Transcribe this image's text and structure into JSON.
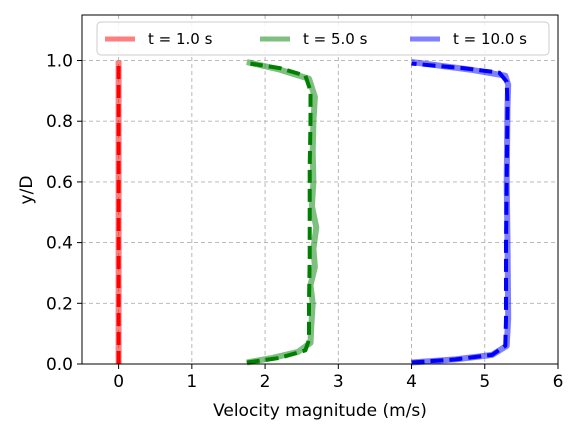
{
  "chart_data": {
    "type": "line",
    "title": "",
    "xlabel": "Velocity magnitude (m/s)",
    "ylabel": "y/D",
    "xlim": [
      -0.5,
      6
    ],
    "ylim": [
      0,
      1.15
    ],
    "x_ticks": [
      "0",
      "1",
      "2",
      "3",
      "4",
      "5",
      "6"
    ],
    "x_tick_values": [
      0,
      1,
      2,
      3,
      4,
      5,
      6
    ],
    "y_ticks": [
      "0.0",
      "0.2",
      "0.4",
      "0.6",
      "0.8",
      "1.0"
    ],
    "y_tick_values": [
      0,
      0.2,
      0.4,
      0.6,
      0.8,
      1.0
    ],
    "grid": true,
    "legend_placement": "top, 3 columns",
    "series": [
      {
        "name": "t = 1.0 s",
        "color": "#ff0000",
        "solid": [
          [
            0,
            0.0
          ],
          [
            0,
            1.0
          ]
        ],
        "dashed": [
          [
            0,
            0.0
          ],
          [
            0,
            1.0
          ]
        ]
      },
      {
        "name": "t = 5.0 s",
        "color": "#008000",
        "solid": [
          [
            1.75,
            0.005
          ],
          [
            2.1,
            0.02
          ],
          [
            2.45,
            0.04
          ],
          [
            2.62,
            0.07
          ],
          [
            2.63,
            0.12
          ],
          [
            2.65,
            0.2
          ],
          [
            2.62,
            0.26
          ],
          [
            2.68,
            0.32
          ],
          [
            2.66,
            0.38
          ],
          [
            2.7,
            0.45
          ],
          [
            2.64,
            0.52
          ],
          [
            2.66,
            0.6
          ],
          [
            2.65,
            0.7
          ],
          [
            2.66,
            0.8
          ],
          [
            2.68,
            0.88
          ],
          [
            2.6,
            0.94
          ],
          [
            2.2,
            0.97
          ],
          [
            1.75,
            0.995
          ]
        ],
        "dashed": [
          [
            1.75,
            0.005
          ],
          [
            2.2,
            0.02
          ],
          [
            2.55,
            0.045
          ],
          [
            2.6,
            0.08
          ],
          [
            2.6,
            0.2
          ],
          [
            2.61,
            0.35
          ],
          [
            2.61,
            0.5
          ],
          [
            2.61,
            0.65
          ],
          [
            2.62,
            0.8
          ],
          [
            2.62,
            0.9
          ],
          [
            2.55,
            0.95
          ],
          [
            2.2,
            0.975
          ],
          [
            1.8,
            0.99
          ]
        ]
      },
      {
        "name": "t = 10.0 s",
        "color": "#0000ff",
        "solid": [
          [
            4.0,
            0.005
          ],
          [
            4.6,
            0.015
          ],
          [
            5.1,
            0.03
          ],
          [
            5.3,
            0.06
          ],
          [
            5.32,
            0.15
          ],
          [
            5.31,
            0.4
          ],
          [
            5.3,
            0.6
          ],
          [
            5.31,
            0.85
          ],
          [
            5.32,
            0.92
          ],
          [
            5.28,
            0.95
          ],
          [
            4.8,
            0.97
          ],
          [
            4.0,
            0.995
          ]
        ],
        "dashed": [
          [
            4.0,
            0.005
          ],
          [
            4.6,
            0.015
          ],
          [
            5.1,
            0.03
          ],
          [
            5.28,
            0.06
          ],
          [
            5.29,
            0.15
          ],
          [
            5.29,
            0.4
          ],
          [
            5.3,
            0.6
          ],
          [
            5.31,
            0.85
          ],
          [
            5.3,
            0.93
          ],
          [
            5.2,
            0.96
          ],
          [
            4.7,
            0.975
          ],
          [
            4.0,
            0.99
          ]
        ]
      }
    ]
  }
}
